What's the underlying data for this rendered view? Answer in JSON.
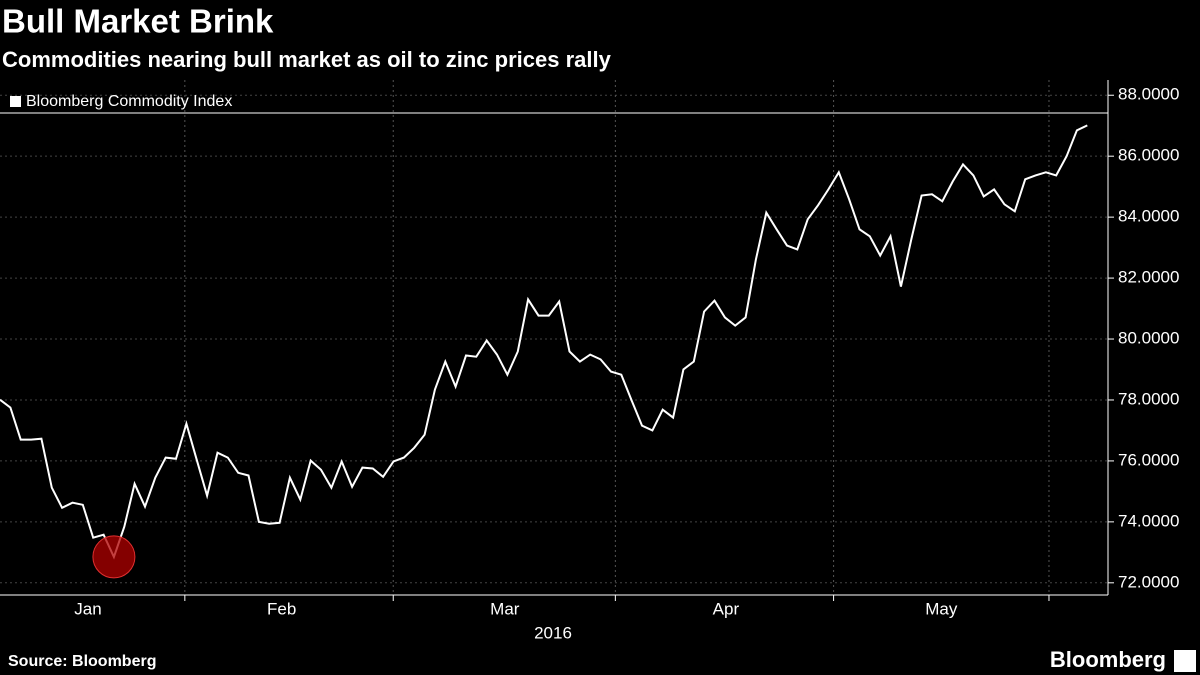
{
  "chart_data": {
    "type": "line",
    "title": "Bull Market Brink",
    "subtitle": "Commodities nearing bull market as oil to zinc prices rally",
    "source": "Source: Bloomberg",
    "brand": "Bloomberg",
    "xlabel": "2016",
    "series": [
      {
        "name": "Bloomberg Commodity Index",
        "color": "#ffffff",
        "values": [
          78.01,
          77.75,
          76.7,
          76.7,
          76.73,
          75.12,
          74.46,
          74.63,
          74.56,
          73.48,
          73.58,
          72.85,
          73.84,
          75.25,
          74.5,
          75.45,
          76.11,
          76.07,
          77.22,
          76.04,
          74.86,
          76.27,
          76.11,
          75.61,
          75.52,
          74.0,
          73.94,
          73.97,
          75.45,
          74.73,
          76.01,
          75.71,
          75.12,
          75.98,
          75.15,
          75.78,
          75.75,
          75.48,
          75.98,
          76.11,
          76.43,
          76.86,
          78.34,
          79.26,
          78.44,
          79.46,
          79.42,
          79.95,
          79.49,
          78.83,
          79.59,
          81.3,
          80.77,
          80.77,
          81.23,
          79.59,
          79.26,
          79.49,
          79.33,
          78.93,
          78.83,
          77.98,
          77.16,
          77.0,
          77.68,
          77.42,
          79.0,
          79.26,
          80.9,
          81.26,
          80.71,
          80.44,
          80.71,
          82.61,
          84.15,
          83.6,
          83.07,
          82.94,
          83.93,
          84.39,
          84.91,
          85.47,
          84.59,
          83.6,
          83.37,
          82.74,
          83.37,
          81.72,
          83.27,
          84.71,
          84.75,
          84.52,
          85.17,
          85.73,
          85.37,
          84.68,
          84.91,
          84.42,
          84.19,
          85.24,
          85.37,
          85.47,
          85.37,
          86.0,
          86.85,
          87.01
        ]
      }
    ],
    "xlim": [
      0,
      107
    ],
    "xticks": [
      {
        "value": 8.5,
        "label": "Jan"
      },
      {
        "value": 27.2,
        "label": "Feb"
      },
      {
        "value": 48.75,
        "label": "Mar"
      },
      {
        "value": 70.1,
        "label": "Apr"
      },
      {
        "value": 90.9,
        "label": "May"
      }
    ],
    "ylim": [
      71.6,
      88.5
    ],
    "yticks": [
      {
        "value": 72,
        "label": "72.0000"
      },
      {
        "value": 74,
        "label": "74.0000"
      },
      {
        "value": 76,
        "label": "76.0000"
      },
      {
        "value": 78,
        "label": "78.0000"
      },
      {
        "value": 80,
        "label": "80.0000"
      },
      {
        "value": 82,
        "label": "82.0000"
      },
      {
        "value": 84,
        "label": "84.0000"
      },
      {
        "value": 86,
        "label": "86.0000"
      },
      {
        "value": 88,
        "label": "88.0000"
      }
    ],
    "grid": true
  }
}
